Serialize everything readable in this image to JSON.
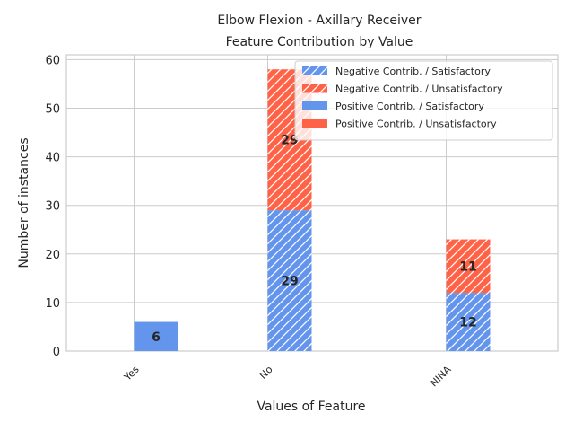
{
  "chart_data": {
    "type": "bar",
    "title_lines": [
      "Elbow Flexion - Axillary Receiver",
      "Feature Contribution by Value"
    ],
    "xlabel": "Values of Feature",
    "ylabel": "Number of instances",
    "ylim": [
      0,
      61
    ],
    "yticks": [
      0,
      10,
      20,
      30,
      40,
      50,
      60
    ],
    "categories": [
      "Yes",
      "No",
      "NINA"
    ],
    "grid": true,
    "legend_position": "top-right",
    "colors": {
      "satisfactory": "#6495ed",
      "unsatisfactory": "#ff6347"
    },
    "groups": [
      {
        "name": "Negative Contrib.",
        "hatched": true,
        "series": [
          {
            "name": "Negative Contrib. / Satisfactory",
            "color": "#6495ed",
            "values": [
              0,
              29,
              12
            ]
          },
          {
            "name": "Negative Contrib. / Unsatisfactory",
            "color": "#ff6347",
            "values": [
              0,
              29,
              11
            ]
          }
        ]
      },
      {
        "name": "Positive Contrib.",
        "hatched": false,
        "series": [
          {
            "name": "Positive Contrib. / Satisfactory",
            "color": "#6495ed",
            "values": [
              6,
              0,
              0
            ]
          },
          {
            "name": "Positive Contrib. / Unsatisfactory",
            "color": "#ff6347",
            "values": [
              0,
              0,
              0
            ]
          }
        ]
      }
    ]
  }
}
